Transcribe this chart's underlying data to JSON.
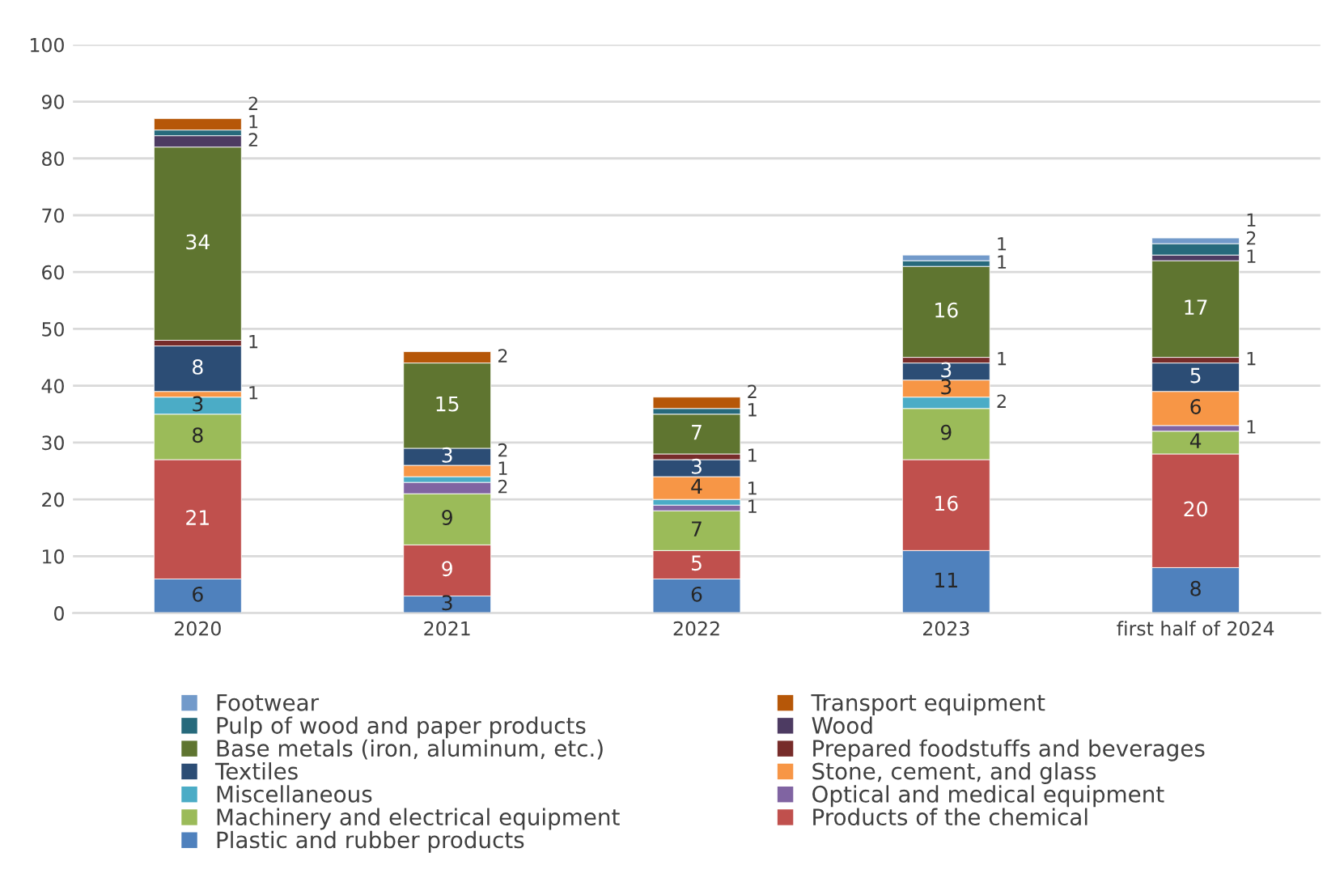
{
  "chart_data": {
    "type": "bar",
    "stacked": true,
    "data_labels": true,
    "grid": "y",
    "legend": "bottom",
    "categories": [
      "2020",
      "2021",
      "2022",
      "2023",
      "first half of 2024"
    ],
    "ylim": [
      0,
      100
    ],
    "yticks": [
      0,
      10,
      20,
      30,
      40,
      50,
      60,
      70,
      80,
      90,
      100
    ],
    "series": [
      {
        "name": "Plastic and rubber products",
        "color": "#4f81bd",
        "values": [
          6,
          3,
          6,
          11,
          8
        ]
      },
      {
        "name": "Products of the chemical",
        "color": "#c0504d",
        "values": [
          21,
          9,
          5,
          16,
          20
        ]
      },
      {
        "name": "Machinery and electrical equipment",
        "color": "#9bbb59",
        "values": [
          8,
          9,
          7,
          9,
          4
        ]
      },
      {
        "name": "Optical and medical equipment",
        "color": "#8064a2",
        "values": [
          null,
          2,
          1,
          null,
          1
        ]
      },
      {
        "name": "Miscellaneous",
        "color": "#4bacc6",
        "values": [
          3,
          1,
          1,
          2,
          null
        ]
      },
      {
        "name": "Stone, cement, and glass",
        "color": "#f79646",
        "values": [
          1,
          2,
          4,
          3,
          6
        ]
      },
      {
        "name": "Textiles",
        "color": "#2c4d75",
        "values": [
          8,
          3,
          3,
          3,
          5
        ]
      },
      {
        "name": "Prepared foodstuffs and beverages",
        "color": "#772c2a",
        "values": [
          1,
          null,
          1,
          1,
          1
        ]
      },
      {
        "name": "Base metals (iron, aluminum, etc.)",
        "color": "#5f7530",
        "values": [
          34,
          15,
          7,
          16,
          17
        ]
      },
      {
        "name": "Wood",
        "color": "#4d3b62",
        "values": [
          2,
          null,
          null,
          null,
          1
        ]
      },
      {
        "name": "Pulp of wood and paper products",
        "color": "#276a7c",
        "values": [
          1,
          null,
          1,
          1,
          2
        ]
      },
      {
        "name": "Transport equipment",
        "color": "#b65708",
        "values": [
          2,
          2,
          2,
          null,
          null
        ]
      },
      {
        "name": "Footwear",
        "color": "#729aca",
        "values": [
          null,
          null,
          null,
          1,
          1
        ]
      }
    ]
  }
}
